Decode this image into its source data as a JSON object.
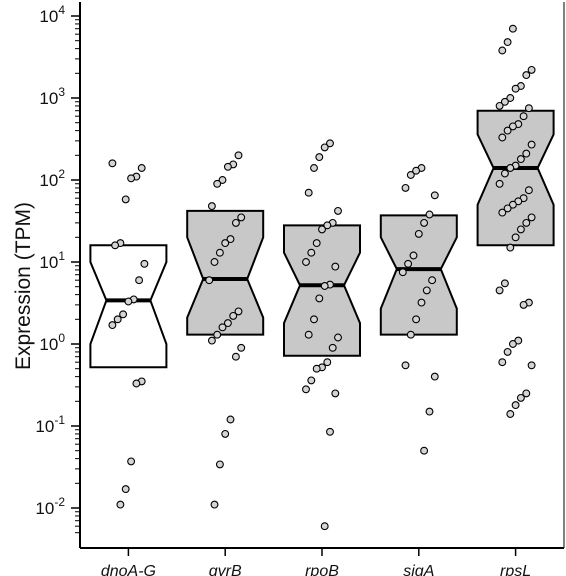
{
  "chart_data": {
    "type": "boxplot",
    "title": "",
    "xlabel": "",
    "ylabel": "Expression (TPM)",
    "yscale": "log10",
    "ylim": [
      0.005,
      10000
    ],
    "yticks": [
      {
        "value": 0.01,
        "base": "10",
        "exp": "-2"
      },
      {
        "value": 0.1,
        "base": "10",
        "exp": "-1"
      },
      {
        "value": 1,
        "base": "10",
        "exp": "0"
      },
      {
        "value": 10,
        "base": "10",
        "exp": "1"
      },
      {
        "value": 100,
        "base": "10",
        "exp": "2"
      },
      {
        "value": 1000,
        "base": "10",
        "exp": "3"
      },
      {
        "value": 10000,
        "base": "10",
        "exp": "4"
      }
    ],
    "notched": true,
    "categories": [
      "dnoA-G",
      "gyrB",
      "rpoB",
      "sigA",
      "rpsL"
    ],
    "boxes": [
      {
        "name": "dnoA-G",
        "q1": 0.52,
        "median": 3.4,
        "q3": 16,
        "notch_low": 1.0,
        "notch_high": 10,
        "fill": "#ffffff"
      },
      {
        "name": "gyrB",
        "q1": 1.3,
        "median": 6.2,
        "q3": 42,
        "notch_low": 2.1,
        "notch_high": 20,
        "fill": "#c8c8c8"
      },
      {
        "name": "rpoB",
        "q1": 0.72,
        "median": 5.2,
        "q3": 28,
        "notch_low": 1.8,
        "notch_high": 13,
        "fill": "#c8c8c8"
      },
      {
        "name": "sigA",
        "q1": 1.3,
        "median": 8.2,
        "q3": 37,
        "notch_low": 2.7,
        "notch_high": 20,
        "fill": "#c8c8c8"
      },
      {
        "name": "rpsL",
        "q1": 16,
        "median": 140,
        "q3": 700,
        "notch_low": 50,
        "notch_high": 360,
        "fill": "#c8c8c8"
      }
    ],
    "points": [
      {
        "category": "dnoA-G",
        "values": [
          160,
          140,
          110,
          105,
          58,
          17,
          16,
          9.5,
          6,
          3.5,
          3.3,
          2.3,
          2.0,
          1.7,
          0.35,
          0.33,
          0.037,
          0.017,
          0.011
        ]
      },
      {
        "category": "gyrB",
        "values": [
          200,
          155,
          145,
          100,
          90,
          48,
          35,
          30,
          19,
          17,
          13,
          10,
          6,
          2.5,
          2.2,
          1.8,
          1.6,
          1.3,
          1.1,
          0.9,
          0.7,
          0.12,
          0.08,
          0.034,
          0.011
        ]
      },
      {
        "category": "rpoB",
        "values": [
          280,
          250,
          190,
          140,
          70,
          42,
          30,
          28,
          25,
          17,
          13,
          10,
          8.8,
          5.3,
          5.1,
          3.6,
          2.0,
          1.3,
          1.2,
          0.9,
          0.6,
          0.52,
          0.5,
          0.36,
          0.28,
          0.25,
          0.085,
          0.006
        ]
      },
      {
        "category": "sigA",
        "values": [
          140,
          130,
          115,
          80,
          65,
          38,
          30,
          22,
          12,
          9.5,
          7.5,
          6,
          4.5,
          3.2,
          2.0,
          1.3,
          0.55,
          0.4,
          0.15,
          0.05
        ]
      },
      {
        "category": "rpsL",
        "values": [
          7000,
          4800,
          3800,
          2200,
          1900,
          1400,
          1300,
          1000,
          900,
          800,
          750,
          600,
          480,
          450,
          400,
          330,
          270,
          210,
          180,
          150,
          140,
          120,
          90,
          75,
          60,
          55,
          50,
          45,
          40,
          35,
          30,
          25,
          20,
          15,
          5.5,
          4.5,
          3.2,
          3.0,
          1.1,
          1.0,
          0.8,
          0.6,
          0.55,
          0.25,
          0.22,
          0.18,
          0.14
        ]
      }
    ],
    "colors": {
      "box_fill": "#c8c8c8",
      "box_fill_first": "#ffffff",
      "point_fill": "#d4d4d4",
      "stroke": "#000000"
    }
  }
}
